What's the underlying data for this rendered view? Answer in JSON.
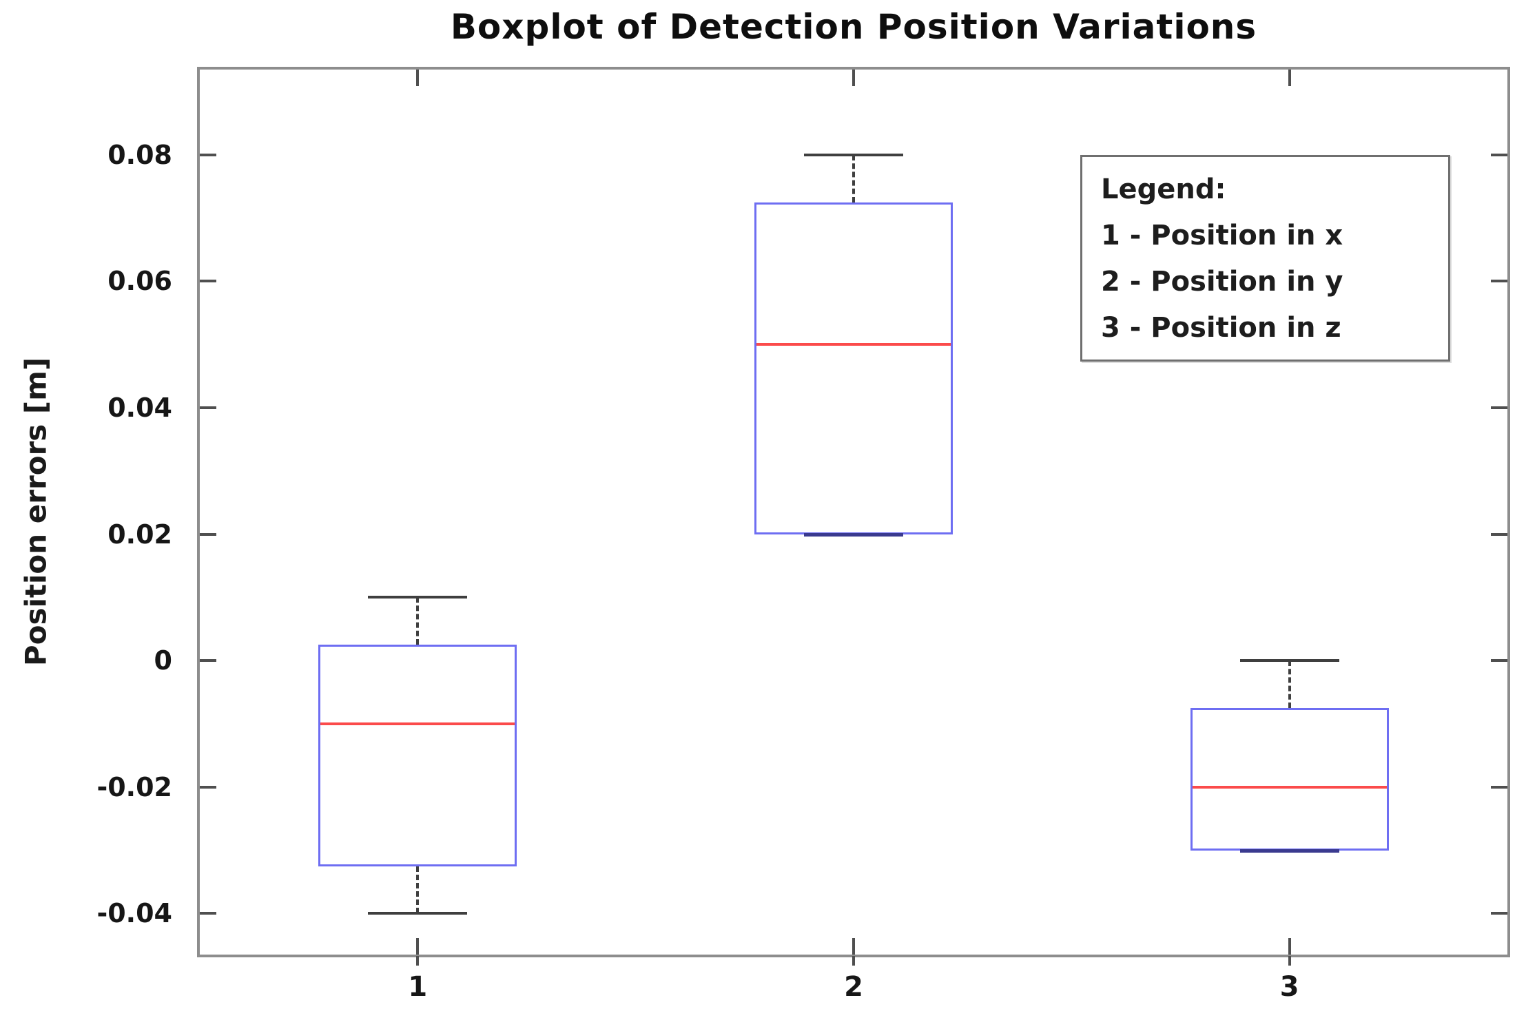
{
  "chart_data": {
    "type": "boxplot",
    "title": "Boxplot of Detection Position Variations",
    "ylabel": "Position errors [m]",
    "xlabel": "",
    "categories": [
      "1",
      "2",
      "3"
    ],
    "ylim": [
      -0.0465,
      0.0935
    ],
    "yticks": [
      0.08,
      0.06,
      0.04,
      0.02,
      0,
      -0.02,
      -0.04
    ],
    "ytick_labels": [
      "0.08",
      "0.06",
      "0.04",
      "0.02",
      "0",
      "-0.02",
      "-0.04"
    ],
    "grid": false,
    "series": [
      {
        "category": "1",
        "name": "Position in x",
        "whisker_low": -0.04,
        "q1": -0.0325,
        "median": -0.01,
        "q3": 0.0025,
        "whisker_high": 0.01
      },
      {
        "category": "2",
        "name": "Position in y",
        "whisker_low": 0.02,
        "q1": 0.02,
        "median": 0.05,
        "q3": 0.0725,
        "whisker_high": 0.08
      },
      {
        "category": "3",
        "name": "Position in z",
        "whisker_low": -0.03,
        "q1": -0.03,
        "median": -0.02,
        "q3": -0.0075,
        "whisker_high": 0.0
      }
    ],
    "legend": {
      "title": "Legend:",
      "entries": [
        "1 - Position in x",
        "2 - Position in y",
        "3 - Position in z"
      ],
      "position": "upper right"
    },
    "colors": {
      "box_edge": "#6e6ef2",
      "median": "#fb4b4b",
      "whisker": "#3f3f3f",
      "whisker_overlap": "#3a3a8f",
      "axis_frame": "#8d8d8d",
      "tick": "#4f4f4f",
      "text": "#161616",
      "background": "#ffffff"
    }
  }
}
